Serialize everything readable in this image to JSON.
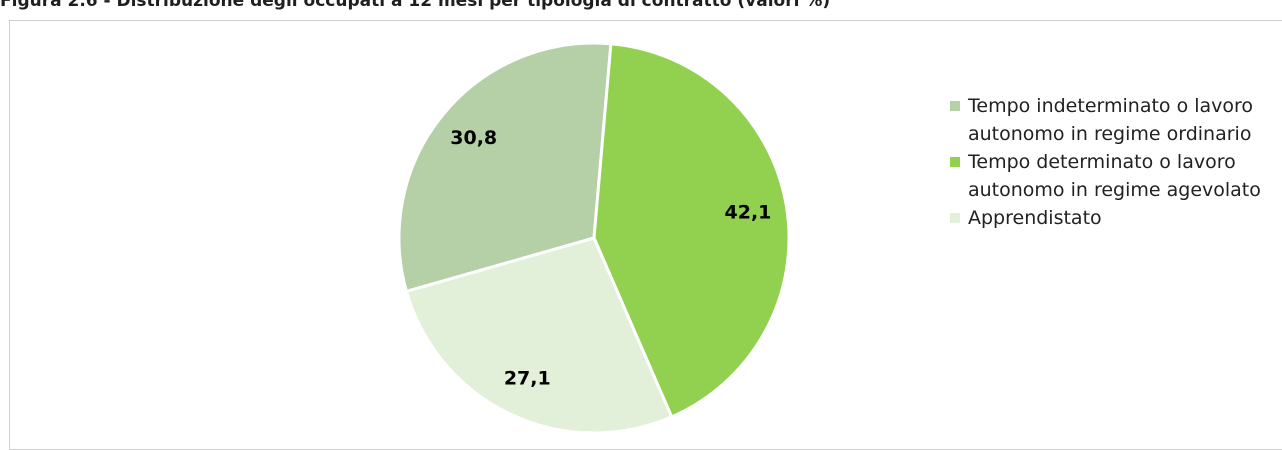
{
  "chart_data": {
    "type": "pie",
    "title": "Figura 2.6 - Distribuzione degli occupati a 12 mesi per tipologia di contratto (valori %)",
    "categories": [
      "Tempo indeterminato o lavoro autonomo in regime ordinario",
      "Tempo determinato o lavoro autonomo in regime agevolato",
      "Apprendistato"
    ],
    "values": [
      30.8,
      42.1,
      27.1
    ],
    "value_labels": [
      "30,8",
      "42,1",
      "27,1"
    ],
    "colors": [
      "#b5d0a6",
      "#92d050",
      "#e2efd9"
    ],
    "legend": "right"
  }
}
